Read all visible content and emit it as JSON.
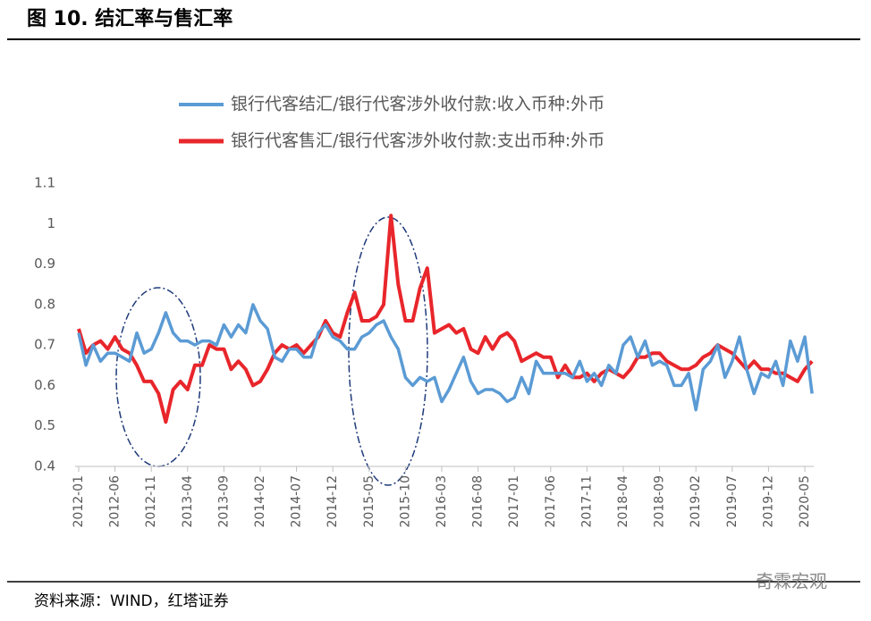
{
  "header": {
    "title": "图 10. 结汇率与售汇率"
  },
  "chart_data": {
    "type": "line",
    "categories": [
      "2012-01",
      null,
      null,
      null,
      null,
      "2012-06",
      null,
      null,
      null,
      null,
      "2012-11",
      null,
      null,
      null,
      null,
      "2013-04",
      null,
      null,
      null,
      null,
      "2013-09",
      null,
      null,
      null,
      null,
      "2014-02",
      null,
      null,
      null,
      null,
      "2014-07",
      null,
      null,
      null,
      null,
      "2014-12",
      null,
      null,
      null,
      null,
      "2015-05",
      null,
      null,
      null,
      null,
      "2015-10",
      null,
      null,
      null,
      null,
      "2016-03",
      null,
      null,
      null,
      null,
      "2016-08",
      null,
      null,
      null,
      null,
      "2017-01",
      null,
      null,
      null,
      null,
      "2017-06",
      null,
      null,
      null,
      null,
      "2017-11",
      null,
      null,
      null,
      null,
      "2018-04",
      null,
      null,
      null,
      null,
      "2018-09",
      null,
      null,
      null,
      null,
      "2019-02",
      null,
      null,
      null,
      null,
      "2019-07",
      null,
      null,
      null,
      null,
      "2019-12",
      null,
      null,
      null,
      null,
      "2020-05",
      null
    ],
    "series": [
      {
        "name": "银行代客结汇/银行代客涉外收付款:收入币种:外币",
        "color": "#5b9bd5",
        "values": [
          0.73,
          0.65,
          0.7,
          0.66,
          0.68,
          0.68,
          0.67,
          0.66,
          0.73,
          0.68,
          0.69,
          0.73,
          0.78,
          0.73,
          0.71,
          0.71,
          0.7,
          0.71,
          0.71,
          0.7,
          0.75,
          0.72,
          0.75,
          0.73,
          0.8,
          0.76,
          0.74,
          0.67,
          0.66,
          0.69,
          0.69,
          0.67,
          0.67,
          0.73,
          0.75,
          0.72,
          0.71,
          0.69,
          0.69,
          0.72,
          0.73,
          0.75,
          0.76,
          0.72,
          0.69,
          0.62,
          0.6,
          0.62,
          0.61,
          0.62,
          0.56,
          0.59,
          0.63,
          0.67,
          0.61,
          0.58,
          0.59,
          0.59,
          0.58,
          0.56,
          0.57,
          0.62,
          0.58,
          0.66,
          0.63,
          0.63,
          0.63,
          0.63,
          0.62,
          0.66,
          0.61,
          0.63,
          0.6,
          0.65,
          0.63,
          0.7,
          0.72,
          0.67,
          0.71,
          0.65,
          0.66,
          0.65,
          0.6,
          0.6,
          0.63,
          0.54,
          0.64,
          0.66,
          0.7,
          0.62,
          0.66,
          0.72,
          0.64,
          0.58,
          0.63,
          0.62,
          0.66,
          0.6,
          0.71,
          0.66,
          0.72,
          0.58
        ]
      },
      {
        "name": "银行代客售汇/银行代客涉外收付款:支出币种:外币",
        "color": "#e8262b",
        "values": [
          0.74,
          0.68,
          0.7,
          0.71,
          0.69,
          0.72,
          0.69,
          0.68,
          0.65,
          0.61,
          0.61,
          0.58,
          0.51,
          0.59,
          0.61,
          0.59,
          0.65,
          0.65,
          0.7,
          0.69,
          0.69,
          0.64,
          0.66,
          0.64,
          0.6,
          0.61,
          0.64,
          0.68,
          0.7,
          0.69,
          0.7,
          0.68,
          0.7,
          0.72,
          0.76,
          0.73,
          0.72,
          0.78,
          0.83,
          0.76,
          0.76,
          0.77,
          0.8,
          1.02,
          0.85,
          0.76,
          0.76,
          0.84,
          0.89,
          0.73,
          0.74,
          0.75,
          0.73,
          0.74,
          0.69,
          0.68,
          0.72,
          0.69,
          0.72,
          0.73,
          0.71,
          0.66,
          0.67,
          0.68,
          0.67,
          0.67,
          0.62,
          0.65,
          0.62,
          0.62,
          0.63,
          0.61,
          0.63,
          0.64,
          0.63,
          0.62,
          0.64,
          0.67,
          0.67,
          0.68,
          0.68,
          0.66,
          0.65,
          0.64,
          0.64,
          0.65,
          0.67,
          0.68,
          0.7,
          0.69,
          0.68,
          0.66,
          0.64,
          0.66,
          0.64,
          0.64,
          0.63,
          0.63,
          0.62,
          0.61,
          0.64,
          0.66
        ]
      }
    ],
    "ylim": [
      0.4,
      1.1
    ],
    "yticks": [
      0.4,
      0.5,
      0.6,
      0.7,
      0.8,
      0.9,
      1,
      1.1
    ],
    "grid": false,
    "legend": "top"
  },
  "footer": {
    "source": "资料来源：WIND，红塔证券",
    "watermark": "奇霖宏观"
  }
}
